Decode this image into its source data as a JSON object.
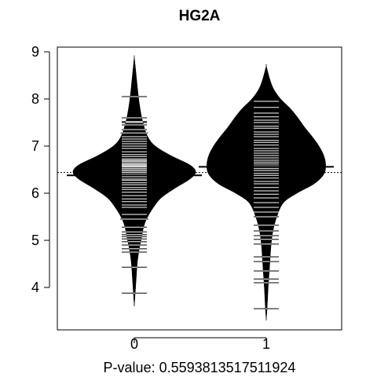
{
  "chart_data": {
    "type": "beanplot",
    "title": "HG2A",
    "xlabel": "P-value: 0.5593813517511924",
    "ylabel": "",
    "categories": [
      "0",
      "1"
    ],
    "y_ticks": [
      4,
      5,
      6,
      7,
      8,
      9
    ],
    "ylim": [
      3.1,
      9.1
    ],
    "overall_mean": 6.44,
    "groups": [
      {
        "name": "0",
        "mean": 6.38,
        "density": [
          [
            3.6,
            0.0
          ],
          [
            3.9,
            0.01
          ],
          [
            4.2,
            0.02
          ],
          [
            4.5,
            0.03
          ],
          [
            4.8,
            0.05
          ],
          [
            5.0,
            0.07
          ],
          [
            5.3,
            0.1
          ],
          [
            5.5,
            0.14
          ],
          [
            5.7,
            0.2
          ],
          [
            5.9,
            0.28
          ],
          [
            6.1,
            0.42
          ],
          [
            6.3,
            0.58
          ],
          [
            6.45,
            0.64
          ],
          [
            6.6,
            0.58
          ],
          [
            6.8,
            0.38
          ],
          [
            7.0,
            0.22
          ],
          [
            7.2,
            0.14
          ],
          [
            7.5,
            0.09
          ],
          [
            7.8,
            0.06
          ],
          [
            8.1,
            0.04
          ],
          [
            8.4,
            0.025
          ],
          [
            8.7,
            0.01
          ],
          [
            8.9,
            0.0
          ]
        ],
        "observations": [
          3.88,
          4.43,
          4.75,
          4.82,
          4.9,
          4.97,
          5.03,
          5.08,
          5.12,
          5.18,
          5.28,
          5.45,
          5.55,
          5.7,
          5.75,
          5.82,
          5.88,
          5.95,
          6.02,
          6.08,
          6.12,
          6.18,
          6.22,
          6.27,
          6.3,
          6.35,
          6.4,
          6.44,
          6.47,
          6.5,
          6.53,
          6.56,
          6.58,
          6.6,
          6.62,
          6.65,
          6.68,
          6.7,
          6.73,
          6.78,
          6.82,
          6.88,
          6.95,
          7.0,
          7.05,
          7.1,
          7.15,
          7.2,
          7.28,
          7.35,
          7.45,
          7.5,
          7.52,
          7.6,
          8.05
        ]
      },
      {
        "name": "1",
        "mean": 6.56,
        "density": [
          [
            3.3,
            0.0
          ],
          [
            3.6,
            0.01
          ],
          [
            4.0,
            0.02
          ],
          [
            4.3,
            0.03
          ],
          [
            4.6,
            0.04
          ],
          [
            4.9,
            0.05
          ],
          [
            5.2,
            0.07
          ],
          [
            5.5,
            0.11
          ],
          [
            5.8,
            0.18
          ],
          [
            6.0,
            0.32
          ],
          [
            6.2,
            0.5
          ],
          [
            6.4,
            0.6
          ],
          [
            6.6,
            0.62
          ],
          [
            6.8,
            0.6
          ],
          [
            7.0,
            0.55
          ],
          [
            7.2,
            0.48
          ],
          [
            7.4,
            0.4
          ],
          [
            7.6,
            0.33
          ],
          [
            7.8,
            0.25
          ],
          [
            8.0,
            0.15
          ],
          [
            8.2,
            0.08
          ],
          [
            8.4,
            0.04
          ],
          [
            8.7,
            0.0
          ]
        ],
        "observations": [
          3.55,
          4.1,
          4.18,
          4.35,
          4.55,
          4.65,
          4.92,
          5.02,
          5.1,
          5.2,
          5.32,
          5.5,
          5.6,
          5.7,
          5.8,
          5.9,
          5.98,
          6.05,
          6.12,
          6.2,
          6.25,
          6.32,
          6.38,
          6.42,
          6.48,
          6.52,
          6.55,
          6.58,
          6.62,
          6.66,
          6.7,
          6.75,
          6.8,
          6.85,
          6.9,
          6.95,
          7.02,
          7.08,
          7.12,
          7.2,
          7.25,
          7.3,
          7.38,
          7.42,
          7.5,
          7.55,
          7.62,
          7.7,
          7.82,
          7.95
        ]
      }
    ]
  }
}
